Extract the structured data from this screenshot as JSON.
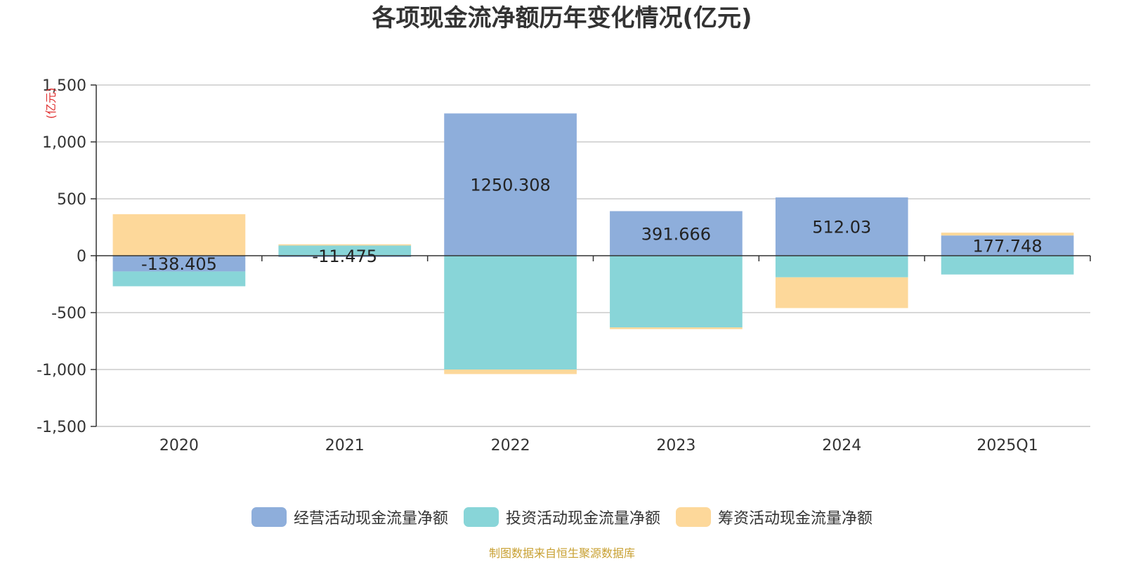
{
  "chart_data": {
    "type": "bar",
    "stacked": true,
    "title": "各项现金流净额历年变化情况(亿元)",
    "ylabel": "(亿元)",
    "xlabel": "",
    "categories": [
      "2020",
      "2021",
      "2022",
      "2023",
      "2024",
      "2025Q1"
    ],
    "ylim": [
      -1500,
      1500
    ],
    "yticks": [
      1500,
      1000,
      500,
      0,
      -500,
      -1000,
      -1500
    ],
    "ytick_labels": [
      "1,500",
      "1,000",
      "500",
      "0",
      "-500",
      "-1,000",
      "-1,500"
    ],
    "grid": true,
    "legend_position": "bottom",
    "series": [
      {
        "name": "经营活动现金流量净额",
        "color": "#8eaedb",
        "values": [
          -138.405,
          -11.475,
          1250.308,
          391.666,
          512.03,
          177.748
        ],
        "labels": [
          "-138.405",
          "-11.475",
          "1250.308",
          "391.666",
          "512.03",
          "177.748"
        ]
      },
      {
        "name": "投资活动现金流量净额",
        "color": "#88d5d8",
        "values": [
          -130,
          90,
          -1000,
          -630,
          -190,
          -165
        ]
      },
      {
        "name": "筹资活动现金流量净额",
        "color": "#fdd89a",
        "values": [
          365,
          10,
          -40,
          -15,
          -270,
          25
        ]
      }
    ]
  },
  "footer": {
    "source": "制图数据来自恒生聚源数据库"
  },
  "colors": {
    "axis": "#333333",
    "grid": "#cccccc",
    "ylabel": "#e03030",
    "source": "#c8a032"
  }
}
